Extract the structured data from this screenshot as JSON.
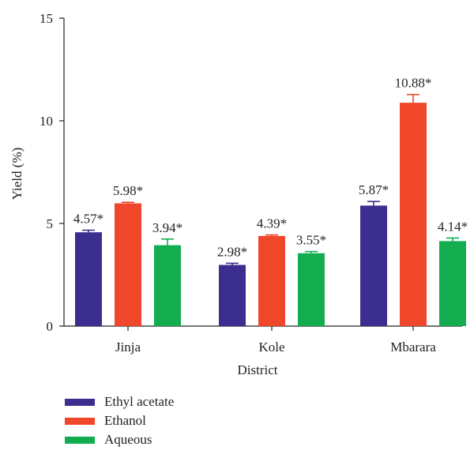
{
  "chart_data": {
    "type": "bar",
    "xlabel": "District",
    "ylabel": "Yield (%)",
    "ylim": [
      0,
      15
    ],
    "yticks": [
      0,
      5,
      10,
      15
    ],
    "categories": [
      "Jinja",
      "Kole",
      "Mbarara"
    ],
    "series": [
      {
        "name": "Ethyl acetate",
        "color": "#3b2e8e",
        "values": [
          4.57,
          2.98,
          5.87
        ],
        "errors": [
          0.1,
          0.08,
          0.2
        ],
        "labels": [
          "4.57*",
          "2.98*",
          "5.87*"
        ]
      },
      {
        "name": "Ethanol",
        "color": "#f0462a",
        "values": [
          5.98,
          4.39,
          10.88
        ],
        "errors": [
          0.05,
          0.05,
          0.4
        ],
        "labels": [
          "5.98*",
          "4.39*",
          "10.88*"
        ]
      },
      {
        "name": "Aqueous",
        "color": "#13ad4f",
        "values": [
          3.94,
          3.55,
          4.14
        ],
        "errors": [
          0.3,
          0.08,
          0.15
        ],
        "labels": [
          "3.94*",
          "3.55*",
          "4.14*"
        ]
      }
    ],
    "legend_position": "bottom-left"
  }
}
